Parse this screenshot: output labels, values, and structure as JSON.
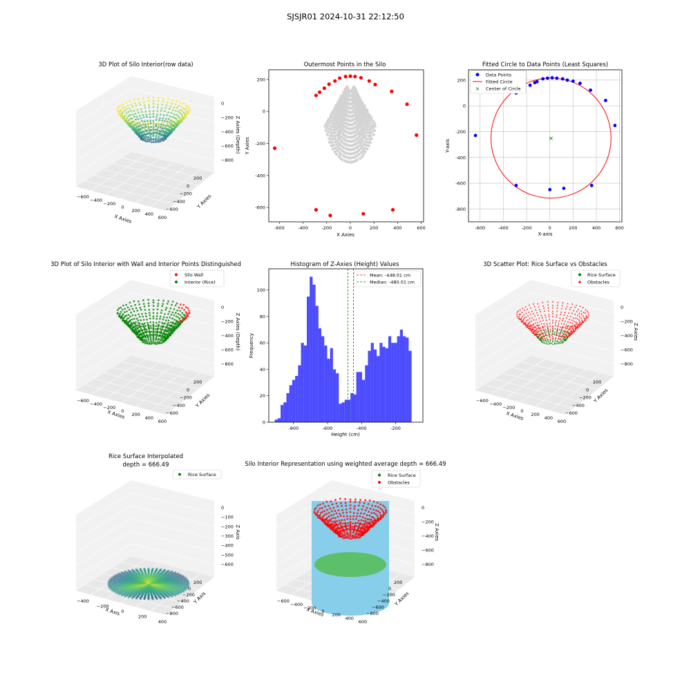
{
  "suptitle": "SJSJR01 2024-10-31 22:12:50",
  "colors": {
    "rice": "#008000",
    "wall": "#ff0000",
    "scatter_gray": "#d3d3d3",
    "hist_bar": "#0000ff",
    "fit_circle": "#ff0000",
    "center": "#008000",
    "silo": "#87ceeb"
  },
  "panels": {
    "p1": {
      "title": "3D Plot of Silo Interior(row data)",
      "xlabel": "X Axies",
      "ylabel": "Y Axies",
      "zlabel": "Z Axies (Depth)",
      "xticks": [
        "−600",
        "−400",
        "−200",
        "0",
        "200",
        "400",
        "600"
      ],
      "yticks": [
        "200",
        "0",
        "−200",
        "−400",
        "−600"
      ],
      "zticks": [
        "0",
        "−200",
        "−400",
        "−600",
        "−800"
      ]
    },
    "p2": {
      "title": "Outermost Points in the Silo",
      "xlabel": "X Axies",
      "ylabel": "Y Axies"
    },
    "p3": {
      "title": "Fitted Circle to Data Points (Least Squares)",
      "xlabel": "X-axis",
      "ylabel": "Y-axis",
      "legend": [
        "Data Points",
        "Fitted Circle",
        "Center of Circle"
      ]
    },
    "p4": {
      "title": "3D Plot of Silo Interior with Wall and Interior Points Distinguished",
      "xlabel": "X Axies",
      "ylabel": "Y Axies",
      "zlabel": "Z Axies (Depth)",
      "legend": [
        "Silo Wall",
        "Interior (Rice)"
      ],
      "xticks": [
        "−600",
        "−400",
        "−200",
        "0",
        "200",
        "400",
        "600"
      ],
      "yticks": [
        "200",
        "0",
        "−200",
        "−400",
        "−600"
      ],
      "zticks": [
        "0",
        "−200",
        "−400",
        "−600",
        "−800"
      ]
    },
    "p5": {
      "title": "Histogram of Z-Axies (Height) Values",
      "xlabel": "Height (cm)",
      "ylabel": "Frequency",
      "legend": [
        "Mean: -448.01 cm",
        "Median: -480.01 cm"
      ]
    },
    "p6": {
      "title": "3D Scatter Plot: Rice Surface vs Obstacles",
      "xlabel": "X Axies",
      "ylabel": "Y Axies",
      "zlabel": "Z Axies",
      "legend": [
        "Rice Surface",
        "Obstacles"
      ],
      "xticks": [
        "−600",
        "−400",
        "−200",
        "0",
        "200",
        "400",
        "600"
      ],
      "yticks": [
        "200",
        "0",
        "−200",
        "−400",
        "−600"
      ],
      "zticks": [
        "0",
        "−200",
        "−400",
        "−600",
        "−800"
      ]
    },
    "p7": {
      "title": "Rice Surface Interpolated",
      "subtitle": "depth = 666.49",
      "xlabel": "X Axis",
      "ylabel": "Y Axis",
      "zlabel": "Z Axis",
      "legend": [
        "Rice Surface"
      ],
      "xticks": [
        "−400",
        "−200",
        "0",
        "200",
        "400"
      ],
      "yticks": [
        "200",
        "0",
        "−200",
        "−400",
        "−600",
        "−800"
      ],
      "zticks": [
        "0",
        "−100",
        "−200",
        "−300",
        "−400",
        "−500",
        "−600"
      ]
    },
    "p8": {
      "title": "Silo Interior Representation using weighted average depth = 666.49",
      "xlabel": "X Axies",
      "ylabel": "Y Axies",
      "zlabel": "Z Axies",
      "legend": [
        "Rice Surface",
        "Obstacles"
      ],
      "xticks": [
        "−600",
        "−400",
        "−200",
        "0",
        "200",
        "400",
        "600"
      ],
      "yticks": [
        "200",
        "0",
        "−200",
        "−400",
        "−600",
        "−800"
      ],
      "zticks": [
        "0",
        "−200",
        "−400",
        "−600",
        "−800"
      ]
    }
  },
  "chart_data": [
    {
      "type": "scatter",
      "title": "Outermost Points in the Silo",
      "xlabel": "X Axies",
      "ylabel": "Y Axies",
      "xlim": [
        -690,
        620
      ],
      "ylim": [
        -690,
        260
      ],
      "xticks": [
        -600,
        -400,
        -200,
        0,
        200,
        400,
        600
      ],
      "yticks": [
        -600,
        -400,
        -200,
        0,
        200
      ],
      "series": [
        {
          "name": "outermost",
          "color": "#ff0000",
          "x": [
            -640,
            -290,
            -260,
            -220,
            -180,
            -130,
            -90,
            -40,
            0,
            40,
            90,
            160,
            210,
            350,
            480,
            560,
            -290,
            -170,
            110,
            360
          ],
          "y": [
            -230,
            100,
            120,
            145,
            170,
            190,
            208,
            218,
            220,
            218,
            210,
            190,
            168,
            125,
            45,
            -148,
            -615,
            -650,
            -640,
            -615
          ]
        }
      ]
    },
    {
      "type": "scatter",
      "title": "Fitted Circle to Data Points (Least Squares)",
      "xlabel": "X-axis",
      "ylabel": "Y-axis",
      "xlim": [
        -700,
        620
      ],
      "ylim": [
        -900,
        280
      ],
      "xticks": [
        -600,
        -400,
        -200,
        0,
        200,
        400,
        600
      ],
      "yticks": [
        -800,
        -600,
        -400,
        -200,
        0,
        200
      ],
      "series": [
        {
          "name": "Data Points",
          "color": "#0000ff",
          "x": [
            -640,
            -290,
            -270,
            -220,
            -170,
            -130,
            -110,
            -60,
            -20,
            20,
            60,
            110,
            150,
            200,
            260,
            350,
            480,
            560,
            -290,
            0,
            120,
            360
          ],
          "y": [
            -230,
            100,
            112,
            145,
            160,
            180,
            188,
            210,
            215,
            218,
            215,
            210,
            200,
            192,
            175,
            122,
            42,
            -152,
            -618,
            -650,
            -640,
            -618
          ]
        }
      ],
      "fitted_circle": {
        "center": [
          10,
          -250
        ],
        "radius": 490
      }
    },
    {
      "type": "bar",
      "title": "Histogram of Z-Axies (Height) Values",
      "xlabel": "Height (cm)",
      "ylabel": "Frequency",
      "xlim": [
        -945,
        -40
      ],
      "ylim": [
        0,
        116
      ],
      "xticks": [
        -800,
        -600,
        -400,
        -200
      ],
      "yticks": [
        0,
        20,
        40,
        60,
        80,
        100
      ],
      "bin_start": -910,
      "bin_width": 17.1,
      "values": [
        2,
        3,
        13,
        15,
        22,
        28,
        32,
        35,
        43,
        60,
        58,
        95,
        110,
        104,
        88,
        71,
        65,
        58,
        48,
        56,
        40,
        37,
        14,
        15,
        17,
        17,
        22,
        21,
        38,
        38,
        32,
        43,
        54,
        60,
        55,
        50,
        60,
        57,
        56,
        65,
        60,
        60,
        65,
        70,
        65,
        64,
        54
      ],
      "mean": -448.01,
      "median": -480.01
    }
  ]
}
